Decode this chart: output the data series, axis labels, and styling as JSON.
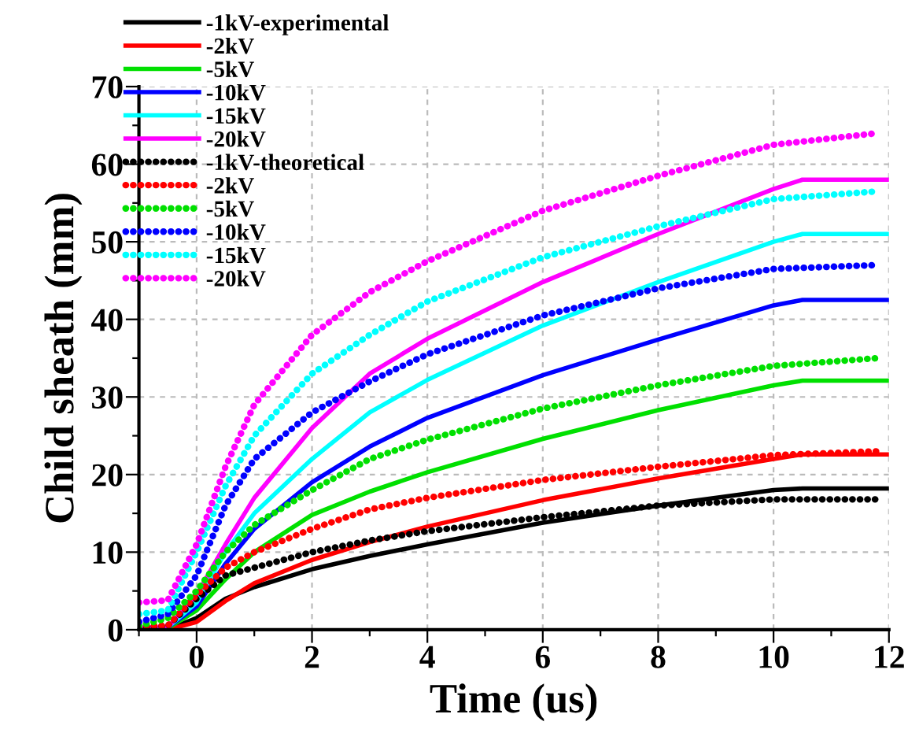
{
  "chart_data": {
    "type": "line",
    "xlabel": "Time (us)",
    "ylabel": "Child sheath (mm)",
    "xlim": [
      -1,
      12
    ],
    "ylim": [
      0,
      70
    ],
    "xticks": [
      {
        "value": -1,
        "label": null
      },
      0,
      {
        "value": 1,
        "label": null
      },
      2,
      {
        "value": 3,
        "label": null
      },
      4,
      {
        "value": 5,
        "label": null
      },
      6,
      {
        "value": 7,
        "label": null
      },
      8,
      {
        "value": 9,
        "label": null
      },
      10,
      {
        "value": 11,
        "label": null
      },
      12
    ],
    "yticks": [
      0,
      {
        "value": 5,
        "label": null
      },
      10,
      {
        "value": 15,
        "label": null
      },
      20,
      {
        "value": 25,
        "label": null
      },
      30,
      {
        "value": 35,
        "label": null
      },
      40,
      {
        "value": 45,
        "label": null
      },
      50,
      {
        "value": 55,
        "label": null
      },
      60,
      {
        "value": 65,
        "label": null
      },
      70
    ],
    "grid": true,
    "legend": "top left",
    "marker": "none",
    "x": [
      -1,
      -0.5,
      0,
      0.5,
      1,
      2,
      3,
      4,
      6,
      8,
      10,
      10.5,
      12
    ],
    "series": [
      {
        "name": "-1kV-experimental",
        "color": "#000000",
        "line_style": "solid",
        "values": [
          0,
          0,
          1.5,
          4,
          5.5,
          7.8,
          9.5,
          11,
          13.8,
          16,
          18,
          18.2,
          18.2
        ]
      },
      {
        "name": "-2kV",
        "color": "#ff0000",
        "line_style": "solid",
        "values": [
          0,
          0,
          1,
          3.7,
          6,
          9,
          11.3,
          13.3,
          16.7,
          19.5,
          22,
          22.6,
          22.6
        ]
      },
      {
        "name": "-5kV",
        "color": "#00e000",
        "line_style": "solid",
        "values": [
          0,
          0.2,
          2.5,
          6.5,
          10,
          14.8,
          17.8,
          20.3,
          24.6,
          28.3,
          31.5,
          32.1,
          32.1
        ]
      },
      {
        "name": "-10kV",
        "color": "#0000ff",
        "line_style": "solid",
        "values": [
          0,
          0.3,
          3,
          8.5,
          13,
          19,
          23.6,
          27.3,
          32.8,
          37.4,
          41.8,
          42.5,
          42.5
        ]
      },
      {
        "name": "-15kV",
        "color": "#00ffff",
        "line_style": "solid",
        "values": [
          0,
          0.3,
          3.5,
          10,
          15,
          22,
          28,
          32.2,
          39.2,
          44.8,
          50,
          51,
          51
        ]
      },
      {
        "name": "-20kV",
        "color": "#ff00ff",
        "line_style": "solid",
        "values": [
          0.3,
          0.3,
          4.5,
          11,
          17,
          26,
          33,
          37.5,
          44.8,
          51,
          56.8,
          58,
          58
        ]
      },
      {
        "name": "-1kV-theoretical",
        "color": "#000000",
        "line_style": "dotted",
        "x": [
          -1,
          -0.5,
          0,
          0.5,
          1,
          2,
          3,
          4,
          6,
          8,
          10,
          11.8
        ],
        "values": [
          0.3,
          0.5,
          4,
          7,
          8,
          10,
          11.5,
          12.7,
          14.5,
          16,
          16.8,
          16.8
        ]
      },
      {
        "name": "-2kV",
        "color": "#ff0000",
        "line_style": "dotted",
        "x": [
          -1,
          -0.5,
          0,
          0.5,
          1,
          2,
          3,
          4,
          6,
          8,
          10,
          11.8
        ],
        "values": [
          0.5,
          0.5,
          4.5,
          8,
          10,
          13,
          15.5,
          17,
          19.3,
          21,
          22.5,
          23
        ]
      },
      {
        "name": "-5kV",
        "color": "#00e000",
        "line_style": "dotted",
        "x": [
          -1,
          -0.5,
          0,
          0.5,
          1,
          2,
          3,
          4,
          6,
          8,
          10,
          11.8
        ],
        "values": [
          0.5,
          1.5,
          5,
          10,
          13.5,
          18,
          22,
          24.5,
          28.5,
          31.5,
          34,
          35
        ]
      },
      {
        "name": "-10kV",
        "color": "#0000ff",
        "line_style": "dotted",
        "x": [
          -1,
          -0.5,
          0,
          0.5,
          1,
          2,
          3,
          4,
          6,
          8,
          10,
          11.8
        ],
        "values": [
          1,
          2,
          7,
          16,
          22,
          28,
          32,
          35.5,
          40.5,
          44,
          46.5,
          47
        ]
      },
      {
        "name": "-15kV",
        "color": "#00ffff",
        "line_style": "dotted",
        "x": [
          -1,
          -0.5,
          0,
          0.5,
          1,
          2,
          3,
          4,
          6,
          8,
          10,
          11.8
        ],
        "values": [
          2,
          2.5,
          10,
          18.5,
          25,
          33,
          38,
          42.3,
          48,
          52,
          55.5,
          56.5
        ]
      },
      {
        "name": "-20kV",
        "color": "#ff00ff",
        "line_style": "dotted",
        "x": [
          -1,
          -0.5,
          0,
          0.5,
          1,
          2,
          3,
          4,
          6,
          8,
          10,
          11.8
        ],
        "values": [
          3.5,
          3.8,
          11,
          21,
          29,
          38,
          43.5,
          47.5,
          54,
          58.5,
          62.5,
          64
        ]
      }
    ]
  }
}
